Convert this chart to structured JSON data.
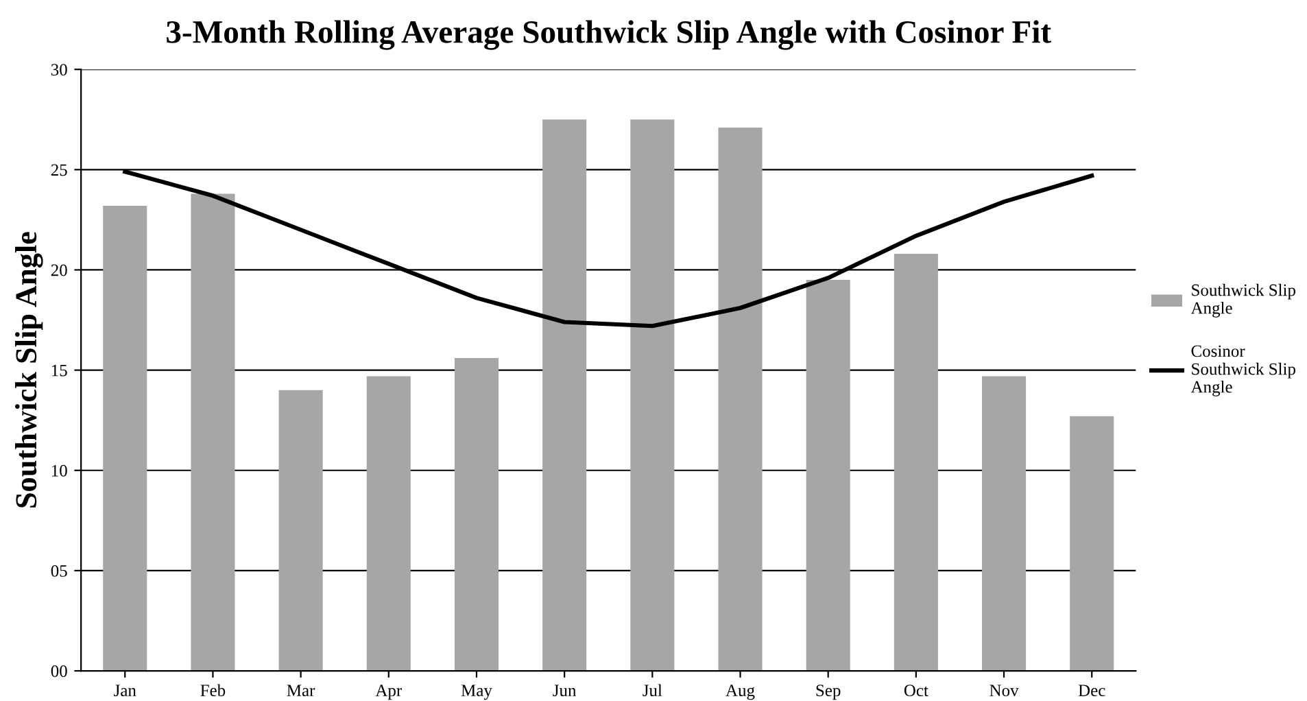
{
  "chart_data": {
    "type": "bar",
    "title": "3-Month Rolling Average Southwick Slip Angle with Cosinor Fit",
    "ylabel": "Southwick Slip Angle",
    "categories": [
      "Jan",
      "Feb",
      "Mar",
      "Apr",
      "May",
      "Jun",
      "Jul",
      "Aug",
      "Sep",
      "Oct",
      "Nov",
      "Dec"
    ],
    "series": [
      {
        "name": "Southwick Slip Angle",
        "color": "#a6a6a6",
        "values": [
          23.2,
          23.8,
          14.0,
          14.7,
          15.6,
          27.5,
          27.5,
          27.1,
          19.5,
          20.8,
          14.7,
          12.7
        ]
      },
      {
        "name": "Cosinor Southwick Slip Angle",
        "type": "line",
        "color": "#000000",
        "values": [
          24.9,
          23.7,
          22.0,
          20.3,
          18.6,
          17.4,
          17.2,
          18.1,
          19.6,
          21.7,
          23.4,
          24.7
        ]
      }
    ],
    "ylim": [
      0,
      30
    ],
    "yticks": [
      {
        "value": 0,
        "label": "00"
      },
      {
        "value": 5,
        "label": "05"
      },
      10,
      15,
      20,
      25,
      30
    ],
    "grid": "y",
    "legend": "right",
    "marker": "none",
    "line_style": "solid"
  }
}
